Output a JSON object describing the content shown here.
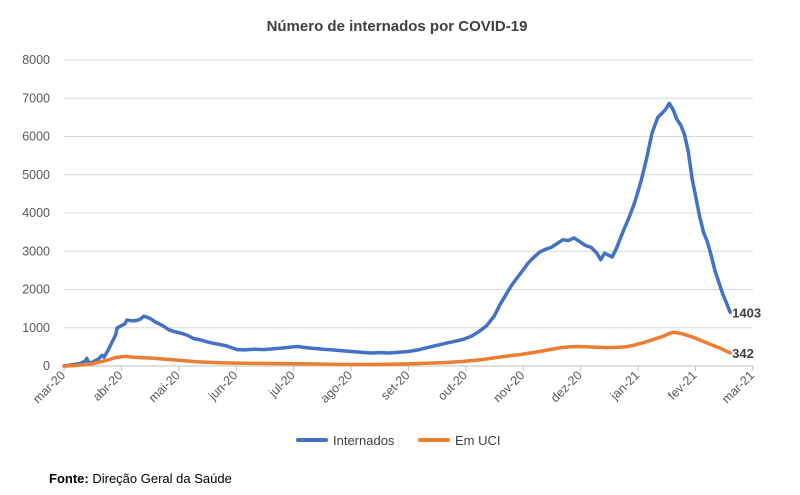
{
  "chart_data": {
    "type": "line",
    "title": "Número de internados por COVID-19",
    "xlabel": "",
    "ylabel": "",
    "ylim": [
      0,
      8000
    ],
    "yticks": [
      0,
      1000,
      2000,
      3000,
      4000,
      5000,
      6000,
      7000,
      8000
    ],
    "x_tick_labels": [
      "mar-20",
      "abr-20",
      "mai-20",
      "jun-20",
      "jul-20",
      "ago-20",
      "set-20",
      "out-20",
      "nov-20",
      "dez-20",
      "jan-21",
      "fev-21",
      "mar-21"
    ],
    "x_range_days": [
      0,
      362
    ],
    "series": [
      {
        "name": "Internados",
        "color": "#4472c4",
        "end_label": "1403",
        "points": [
          [
            0,
            0
          ],
          [
            4,
            30
          ],
          [
            8,
            60
          ],
          [
            11,
            120
          ],
          [
            12,
            200
          ],
          [
            13,
            80
          ],
          [
            15,
            100
          ],
          [
            18,
            180
          ],
          [
            20,
            280
          ],
          [
            21,
            230
          ],
          [
            23,
            400
          ],
          [
            25,
            600
          ],
          [
            27,
            800
          ],
          [
            28,
            1000
          ],
          [
            30,
            1050
          ],
          [
            32,
            1100
          ],
          [
            33,
            1200
          ],
          [
            36,
            1180
          ],
          [
            38,
            1190
          ],
          [
            40,
            1220
          ],
          [
            42,
            1302
          ],
          [
            45,
            1250
          ],
          [
            48,
            1150
          ],
          [
            52,
            1050
          ],
          [
            55,
            950
          ],
          [
            58,
            900
          ],
          [
            62,
            850
          ],
          [
            65,
            800
          ],
          [
            68,
            720
          ],
          [
            72,
            680
          ],
          [
            76,
            620
          ],
          [
            80,
            580
          ],
          [
            85,
            530
          ],
          [
            88,
            480
          ],
          [
            91,
            430
          ],
          [
            95,
            420
          ],
          [
            100,
            440
          ],
          [
            105,
            430
          ],
          [
            110,
            450
          ],
          [
            115,
            470
          ],
          [
            120,
            500
          ],
          [
            123,
            510
          ],
          [
            127,
            480
          ],
          [
            131,
            460
          ],
          [
            136,
            440
          ],
          [
            141,
            420
          ],
          [
            146,
            400
          ],
          [
            151,
            380
          ],
          [
            156,
            360
          ],
          [
            161,
            340
          ],
          [
            166,
            350
          ],
          [
            171,
            340
          ],
          [
            176,
            360
          ],
          [
            181,
            380
          ],
          [
            186,
            420
          ],
          [
            191,
            480
          ],
          [
            196,
            540
          ],
          [
            201,
            600
          ],
          [
            206,
            650
          ],
          [
            210,
            700
          ],
          [
            214,
            780
          ],
          [
            218,
            900
          ],
          [
            222,
            1050
          ],
          [
            226,
            1300
          ],
          [
            229,
            1600
          ],
          [
            232,
            1850
          ],
          [
            235,
            2100
          ],
          [
            238,
            2300
          ],
          [
            241,
            2500
          ],
          [
            244,
            2700
          ],
          [
            247,
            2850
          ],
          [
            250,
            2980
          ],
          [
            253,
            3050
          ],
          [
            256,
            3100
          ],
          [
            259,
            3200
          ],
          [
            262,
            3300
          ],
          [
            265,
            3280
          ],
          [
            268,
            3350
          ],
          [
            271,
            3250
          ],
          [
            274,
            3150
          ],
          [
            277,
            3100
          ],
          [
            280,
            2950
          ],
          [
            282,
            2780
          ],
          [
            284,
            2950
          ],
          [
            286,
            2900
          ],
          [
            288,
            2850
          ],
          [
            290,
            3050
          ],
          [
            292,
            3300
          ],
          [
            294,
            3550
          ],
          [
            297,
            3900
          ],
          [
            300,
            4300
          ],
          [
            303,
            4800
          ],
          [
            306,
            5400
          ],
          [
            309,
            6100
          ],
          [
            312,
            6500
          ],
          [
            314,
            6600
          ],
          [
            316,
            6700
          ],
          [
            318,
            6869
          ],
          [
            320,
            6700
          ],
          [
            322,
            6450
          ],
          [
            324,
            6300
          ],
          [
            326,
            6050
          ],
          [
            328,
            5600
          ],
          [
            330,
            4900
          ],
          [
            332,
            4400
          ],
          [
            334,
            3900
          ],
          [
            336,
            3500
          ],
          [
            338,
            3250
          ],
          [
            340,
            2900
          ],
          [
            342,
            2500
          ],
          [
            344,
            2200
          ],
          [
            346,
            1900
          ],
          [
            348,
            1650
          ],
          [
            350,
            1403
          ]
        ]
      },
      {
        "name": "Em UCI",
        "color": "#ed7d31",
        "end_label": "342",
        "points": [
          [
            0,
            0
          ],
          [
            5,
            10
          ],
          [
            10,
            30
          ],
          [
            15,
            60
          ],
          [
            20,
            120
          ],
          [
            24,
            170
          ],
          [
            27,
            220
          ],
          [
            30,
            240
          ],
          [
            33,
            250
          ],
          [
            36,
            230
          ],
          [
            40,
            220
          ],
          [
            45,
            210
          ],
          [
            50,
            190
          ],
          [
            55,
            170
          ],
          [
            60,
            150
          ],
          [
            65,
            130
          ],
          [
            70,
            110
          ],
          [
            75,
            100
          ],
          [
            80,
            90
          ],
          [
            85,
            80
          ],
          [
            90,
            75
          ],
          [
            95,
            70
          ],
          [
            100,
            68
          ],
          [
            110,
            65
          ],
          [
            120,
            60
          ],
          [
            130,
            55
          ],
          [
            140,
            45
          ],
          [
            150,
            38
          ],
          [
            160,
            40
          ],
          [
            170,
            45
          ],
          [
            180,
            55
          ],
          [
            190,
            70
          ],
          [
            200,
            90
          ],
          [
            210,
            120
          ],
          [
            220,
            170
          ],
          [
            230,
            240
          ],
          [
            240,
            300
          ],
          [
            250,
            380
          ],
          [
            255,
            430
          ],
          [
            260,
            470
          ],
          [
            265,
            500
          ],
          [
            270,
            510
          ],
          [
            275,
            500
          ],
          [
            280,
            490
          ],
          [
            285,
            480
          ],
          [
            290,
            485
          ],
          [
            295,
            500
          ],
          [
            300,
            550
          ],
          [
            305,
            620
          ],
          [
            310,
            700
          ],
          [
            315,
            780
          ],
          [
            318,
            850
          ],
          [
            320,
            880
          ],
          [
            322,
            870
          ],
          [
            325,
            840
          ],
          [
            330,
            760
          ],
          [
            335,
            660
          ],
          [
            340,
            560
          ],
          [
            345,
            460
          ],
          [
            350,
            342
          ]
        ]
      }
    ],
    "legend": [
      {
        "name": "Internados",
        "color": "#4472c4"
      },
      {
        "name": "Em UCI",
        "color": "#ed7d31"
      }
    ],
    "legend_position": "bottom"
  },
  "source": {
    "prefix": "Fonte:",
    "text": "Direção Geral da Saúde"
  }
}
